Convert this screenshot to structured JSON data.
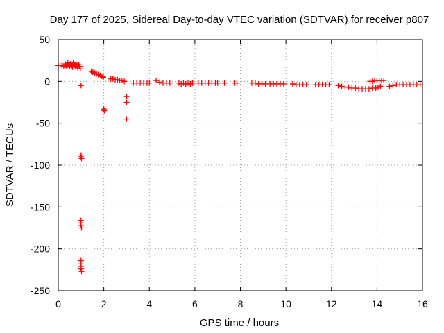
{
  "chart_data": {
    "type": "scatter",
    "title": "Day 177 of 2025, Sidereal Day-to-day VTEC variation (SDTVAR) for receiver p807",
    "xlabel": "GPS time / hours",
    "ylabel": "SDTVAR / TECUs",
    "xlim": [
      0,
      16
    ],
    "ylim": [
      -250,
      50
    ],
    "xticks": [
      0,
      2,
      4,
      6,
      8,
      10,
      12,
      14,
      16
    ],
    "yticks": [
      -250,
      -200,
      -150,
      -100,
      -50,
      0,
      50
    ],
    "grid": true,
    "marker": "+",
    "color": "#ff0000",
    "series": [
      {
        "name": "p807",
        "points": [
          [
            0.0,
            19
          ],
          [
            0.08,
            19
          ],
          [
            0.16,
            19
          ],
          [
            0.24,
            18
          ],
          [
            0.3,
            21
          ],
          [
            0.34,
            19
          ],
          [
            0.38,
            17
          ],
          [
            0.42,
            22
          ],
          [
            0.46,
            20
          ],
          [
            0.5,
            18
          ],
          [
            0.54,
            21
          ],
          [
            0.58,
            19
          ],
          [
            0.62,
            17
          ],
          [
            0.66,
            22
          ],
          [
            0.7,
            20
          ],
          [
            0.74,
            18
          ],
          [
            0.78,
            21
          ],
          [
            0.82,
            19
          ],
          [
            0.86,
            16
          ],
          [
            0.9,
            20
          ],
          [
            0.94,
            18
          ],
          [
            0.97,
            15
          ],
          [
            1.0,
            -5
          ],
          [
            1.0,
            -88
          ],
          [
            1.0,
            -90
          ],
          [
            1.02,
            -92
          ],
          [
            1.0,
            -166
          ],
          [
            1.0,
            -169
          ],
          [
            1.0,
            -172
          ],
          [
            1.02,
            -175
          ],
          [
            1.0,
            -214
          ],
          [
            1.0,
            -218
          ],
          [
            1.0,
            -221
          ],
          [
            1.0,
            -224
          ],
          [
            1.02,
            -227
          ],
          [
            1.45,
            12
          ],
          [
            1.52,
            11
          ],
          [
            1.6,
            10
          ],
          [
            1.68,
            9
          ],
          [
            1.76,
            8
          ],
          [
            1.84,
            7
          ],
          [
            1.92,
            6
          ],
          [
            1.98,
            5
          ],
          [
            2.0,
            -33
          ],
          [
            2.02,
            -35
          ],
          [
            2.3,
            3
          ],
          [
            2.4,
            3
          ],
          [
            2.5,
            2
          ],
          [
            2.6,
            2
          ],
          [
            2.7,
            1
          ],
          [
            2.8,
            1
          ],
          [
            2.9,
            0
          ],
          [
            3.0,
            -18
          ],
          [
            3.0,
            -25
          ],
          [
            3.0,
            -45
          ],
          [
            3.3,
            -2
          ],
          [
            3.45,
            -2
          ],
          [
            3.6,
            -2
          ],
          [
            3.75,
            -2
          ],
          [
            3.9,
            -2
          ],
          [
            4.0,
            -2
          ],
          [
            4.3,
            1
          ],
          [
            4.45,
            -1
          ],
          [
            4.6,
            -2
          ],
          [
            4.75,
            -2
          ],
          [
            4.9,
            -2
          ],
          [
            5.3,
            -2
          ],
          [
            5.4,
            -3
          ],
          [
            5.5,
            -2
          ],
          [
            5.6,
            -3
          ],
          [
            5.7,
            -2
          ],
          [
            5.8,
            -3
          ],
          [
            5.9,
            -2
          ],
          [
            6.15,
            -2
          ],
          [
            6.3,
            -2
          ],
          [
            6.45,
            -2
          ],
          [
            6.6,
            -2
          ],
          [
            6.75,
            -2
          ],
          [
            6.9,
            -2
          ],
          [
            7.0,
            -2
          ],
          [
            7.3,
            -2
          ],
          [
            7.75,
            -2
          ],
          [
            7.85,
            -2
          ],
          [
            8.5,
            -2
          ],
          [
            8.65,
            -2
          ],
          [
            8.8,
            -3
          ],
          [
            8.95,
            -3
          ],
          [
            9.1,
            -3
          ],
          [
            9.3,
            -3
          ],
          [
            9.45,
            -3
          ],
          [
            9.6,
            -3
          ],
          [
            9.75,
            -3
          ],
          [
            9.9,
            -3
          ],
          [
            10.3,
            -3
          ],
          [
            10.45,
            -4
          ],
          [
            10.6,
            -4
          ],
          [
            10.75,
            -4
          ],
          [
            10.9,
            -4
          ],
          [
            11.3,
            -4
          ],
          [
            11.45,
            -4
          ],
          [
            11.6,
            -4
          ],
          [
            11.75,
            -4
          ],
          [
            11.9,
            -4
          ],
          [
            12.3,
            -5
          ],
          [
            12.45,
            -6
          ],
          [
            12.6,
            -7
          ],
          [
            12.75,
            -7
          ],
          [
            12.9,
            -8
          ],
          [
            13.05,
            -8
          ],
          [
            13.2,
            -9
          ],
          [
            13.35,
            -9
          ],
          [
            13.5,
            -9
          ],
          [
            13.65,
            -9
          ],
          [
            13.8,
            -8
          ],
          [
            13.95,
            -8
          ],
          [
            14.05,
            -7
          ],
          [
            14.15,
            -6
          ],
          [
            13.7,
            0
          ],
          [
            13.8,
            0
          ],
          [
            13.9,
            1
          ],
          [
            14.0,
            1
          ],
          [
            14.1,
            1
          ],
          [
            14.2,
            1
          ],
          [
            14.3,
            1
          ],
          [
            14.55,
            -6
          ],
          [
            14.7,
            -5
          ],
          [
            14.85,
            -4
          ],
          [
            15.0,
            -4
          ],
          [
            15.15,
            -4
          ],
          [
            15.3,
            -4
          ],
          [
            15.45,
            -4
          ],
          [
            15.6,
            -4
          ],
          [
            15.75,
            -4
          ],
          [
            15.9,
            -4
          ]
        ]
      }
    ]
  }
}
